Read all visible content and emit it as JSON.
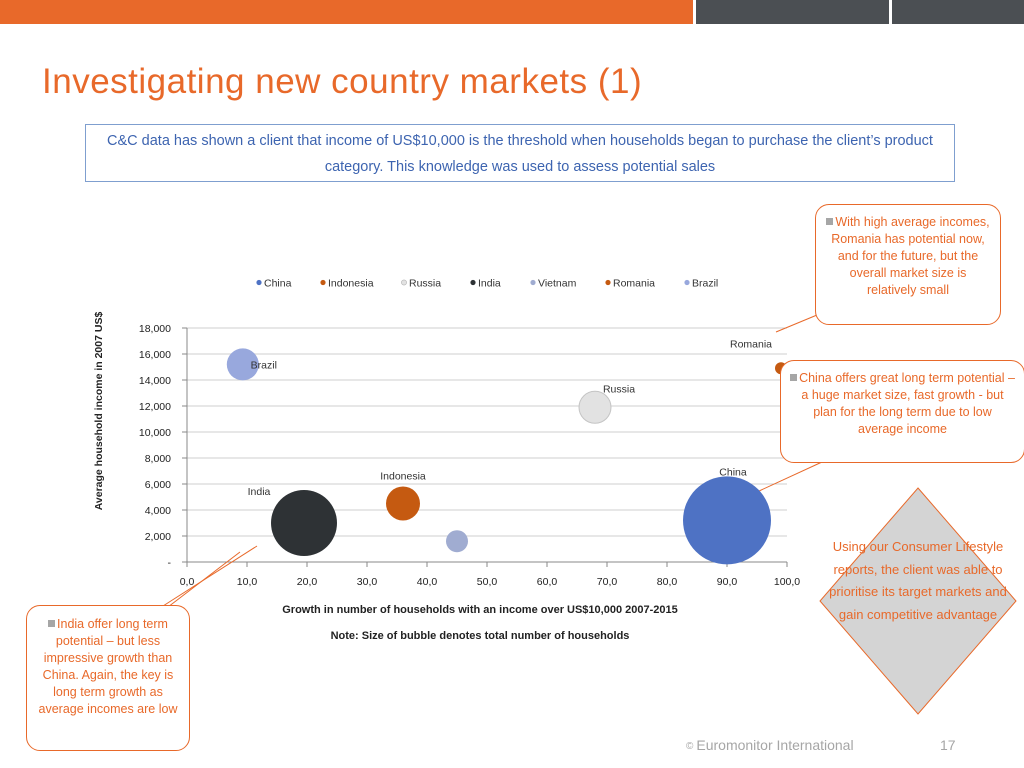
{
  "slide": {
    "title": "Investigating new country markets (1)",
    "intro": "C&C data has shown a client that income of US$10,000 is the threshold when households began to purchase the client’s product category. This knowledge was used to assess potential sales"
  },
  "callouts": {
    "romania": "With high average incomes, Romania has potential now, and for the future, but the overall market size is relatively small",
    "china": "China offers great long term potential – a huge market size, fast growth - but plan for the long term due to low average income",
    "india": "India offer long term potential – but less impressive growth than China. Again, the key is long term growth as average incomes are low"
  },
  "diamond": {
    "text": "Using our Consumer Lifestyle reports, the client was able to prioritise its target markets and gain competitive advantage"
  },
  "footer": {
    "copyright": "©",
    "brand": "Euromonitor International",
    "page": "17"
  },
  "colors": {
    "accent": "#e8692a",
    "dark_bar": "#4b4f53",
    "intro_text": "#3d64b0",
    "diamond_fill": "#d4d4d4"
  },
  "chart_data": {
    "type": "bubble",
    "xlabel": "Growth in number of households with an income over US$10,000 2007-2015",
    "ylabel": "Average household income in 2007 US$",
    "note": "Note: Size of bubble denotes total number of households",
    "xlim": [
      0,
      100
    ],
    "ylim": [
      0,
      18000
    ],
    "xticks": [
      "0,0",
      "10,0",
      "20,0",
      "30,0",
      "40,0",
      "50,0",
      "60,0",
      "70,0",
      "80,0",
      "90,0",
      "100,0"
    ],
    "yticks": [
      "-",
      "2,000",
      "4,000",
      "6,000",
      "8,000",
      "10,000",
      "12,000",
      "14,000",
      "16,000",
      "18,000"
    ],
    "grid": true,
    "legend_position": "top",
    "series": [
      {
        "name": "China",
        "x": 90,
        "y": 3200,
        "size": 44,
        "color": "#4e72c4",
        "label": "China"
      },
      {
        "name": "Indonesia",
        "x": 36,
        "y": 4500,
        "size": 17,
        "color": "#c55a11",
        "label": "Indonesia"
      },
      {
        "name": "Russia",
        "x": 68,
        "y": 11900,
        "size": 16,
        "color": "#e2e2e2",
        "label": "Russia"
      },
      {
        "name": "India",
        "x": 19.5,
        "y": 3000,
        "size": 33,
        "color": "#2e3235",
        "label": "India"
      },
      {
        "name": "Vietnam",
        "x": 45,
        "y": 1600,
        "size": 11,
        "color": "#a0acd1",
        "label": ""
      },
      {
        "name": "Romania",
        "x": 99,
        "y": 14900,
        "size": 6,
        "color": "#c55a11",
        "label": "Romania"
      },
      {
        "name": "Brazil",
        "x": 9.3,
        "y": 15200,
        "size": 16,
        "color": "#98a8dd",
        "label": "Brazil"
      }
    ]
  }
}
